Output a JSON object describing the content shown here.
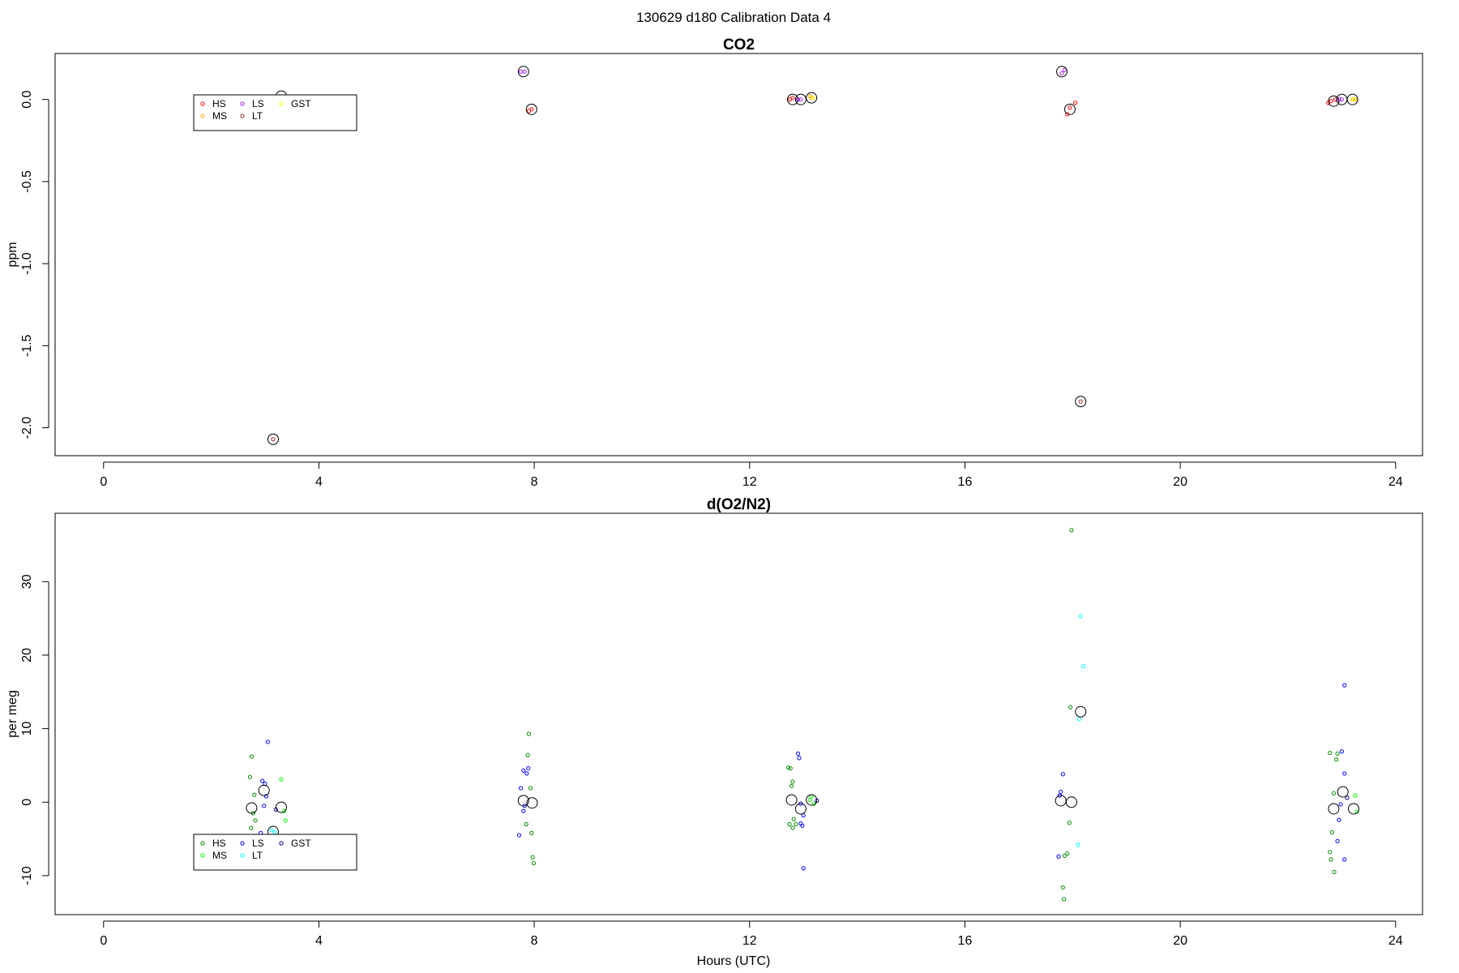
{
  "figure": {
    "suptitle": "130629   d180   Calibration Data 4",
    "xlabel": "Hours (UTC)"
  },
  "chart_data": [
    {
      "type": "scatter",
      "title": "CO2",
      "ylabel": "ppm",
      "xlabel": "",
      "xlim": [
        -0.9,
        24.5
      ],
      "ylim": [
        -2.17,
        0.28
      ],
      "xticks": [
        0,
        4,
        8,
        12,
        16,
        20,
        24
      ],
      "yticks": [
        0.0,
        -0.5,
        -1.0,
        -1.5,
        -2.0
      ],
      "ytick_labels": [
        "0.0",
        "-0.5",
        "-1.0",
        "-1.5",
        "-2.0"
      ],
      "grid": false,
      "legend_position": "upper-left",
      "series": [
        {
          "name": "HS",
          "color": "#ff0000",
          "points": [
            [
              7.95,
              -0.06
            ],
            [
              7.9,
              -0.07
            ],
            [
              12.75,
              0.0
            ],
            [
              12.8,
              0.01
            ],
            [
              17.95,
              -0.05
            ],
            [
              17.9,
              -0.09
            ],
            [
              18.05,
              -0.02
            ],
            [
              22.8,
              -0.01
            ],
            [
              22.88,
              0.0
            ],
            [
              22.75,
              -0.02
            ]
          ]
        },
        {
          "name": "MS",
          "color": "#ffa500",
          "points": [
            [
              13.15,
              0.01
            ],
            [
              13.12,
              0.02
            ],
            [
              23.2,
              0.0
            ],
            [
              23.25,
              0.0
            ]
          ]
        },
        {
          "name": "LS",
          "color": "#a020f0",
          "points": [
            [
              7.75,
              0.17
            ],
            [
              7.82,
              0.17
            ],
            [
              12.95,
              0.0
            ],
            [
              12.9,
              0.0
            ],
            [
              17.8,
              0.16
            ],
            [
              17.85,
              0.18
            ],
            [
              23.0,
              0.0
            ],
            [
              22.95,
              0.0
            ]
          ]
        },
        {
          "name": "LT",
          "color": "#a52a2a",
          "points": [
            [
              3.15,
              -2.07
            ],
            [
              18.15,
              -1.84
            ]
          ]
        },
        {
          "name": "GST",
          "color": "#ffff00",
          "points": [
            [
              13.18,
              0.01
            ],
            [
              23.22,
              0.0
            ]
          ]
        }
      ],
      "means": [
        [
          3.3,
          0.02
        ],
        [
          7.8,
          0.17
        ],
        [
          7.95,
          -0.06
        ],
        [
          12.8,
          0.0
        ],
        [
          12.95,
          0.0
        ],
        [
          13.15,
          0.01
        ],
        [
          17.8,
          0.17
        ],
        [
          17.95,
          -0.06
        ],
        [
          18.15,
          -1.84
        ],
        [
          3.15,
          -2.07
        ],
        [
          22.85,
          -0.01
        ],
        [
          23.0,
          0.0
        ],
        [
          23.2,
          0.0
        ]
      ]
    },
    {
      "type": "scatter",
      "title": "d(O2/N2)",
      "ylabel": "per meg",
      "xlabel": "Hours (UTC)",
      "xlim": [
        -0.9,
        24.5
      ],
      "ylim": [
        -15.3,
        39.3
      ],
      "xticks": [
        0,
        4,
        8,
        12,
        16,
        20,
        24
      ],
      "yticks": [
        30,
        20,
        10,
        0,
        -10
      ],
      "ytick_labels": [
        "30",
        "20",
        "10",
        "0",
        "-10"
      ],
      "grid": false,
      "legend_position": "lower-left",
      "series": [
        {
          "name": "HS",
          "color": "#008b00",
          "points": [
            [
              2.75,
              6.2
            ],
            [
              2.72,
              3.4
            ],
            [
              2.8,
              1.0
            ],
            [
              2.78,
              -1.5
            ],
            [
              2.82,
              -2.5
            ],
            [
              2.74,
              -3.5
            ],
            [
              7.9,
              9.3
            ],
            [
              7.88,
              6.4
            ],
            [
              7.93,
              1.9
            ],
            [
              7.85,
              -3.0
            ],
            [
              7.95,
              -4.2
            ],
            [
              7.97,
              -7.5
            ],
            [
              7.99,
              -8.3
            ],
            [
              12.72,
              4.7
            ],
            [
              12.76,
              4.6
            ],
            [
              12.8,
              2.8
            ],
            [
              12.78,
              2.2
            ],
            [
              12.82,
              -2.3
            ],
            [
              12.74,
              -3.0
            ],
            [
              12.86,
              -3.0
            ],
            [
              12.8,
              -3.5
            ],
            [
              17.98,
              37.0
            ],
            [
              17.96,
              12.9
            ],
            [
              17.94,
              -2.8
            ],
            [
              17.9,
              -7.0
            ],
            [
              17.85,
              -7.3
            ],
            [
              17.82,
              -11.6
            ],
            [
              17.84,
              -13.2
            ],
            [
              22.78,
              6.7
            ],
            [
              22.92,
              6.6
            ],
            [
              22.9,
              5.8
            ],
            [
              22.85,
              1.2
            ],
            [
              22.82,
              -4.1
            ],
            [
              22.78,
              -6.8
            ],
            [
              22.8,
              -7.8
            ],
            [
              22.86,
              -9.5
            ]
          ]
        },
        {
          "name": "MS",
          "color": "#00ff00",
          "points": [
            [
              3.3,
              3.1
            ],
            [
              3.35,
              -1.2
            ],
            [
              3.38,
              -2.5
            ],
            [
              13.15,
              0.8
            ],
            [
              13.12,
              0.3
            ],
            [
              13.2,
              -0.2
            ],
            [
              23.25,
              0.9
            ],
            [
              23.28,
              -1.3
            ]
          ]
        },
        {
          "name": "LS",
          "color": "#0000ff",
          "points": [
            [
              3.05,
              8.2
            ],
            [
              2.95,
              2.9
            ],
            [
              3.0,
              2.5
            ],
            [
              3.02,
              0.8
            ],
            [
              2.98,
              -0.5
            ],
            [
              2.92,
              -4.2
            ],
            [
              7.8,
              4.3
            ],
            [
              7.86,
              3.9
            ],
            [
              7.89,
              4.6
            ],
            [
              7.75,
              1.9
            ],
            [
              7.82,
              -0.5
            ],
            [
              7.8,
              -1.2
            ],
            [
              7.72,
              -4.5
            ],
            [
              12.9,
              6.6
            ],
            [
              12.92,
              6.0
            ],
            [
              12.95,
              -0.2
            ],
            [
              13.0,
              -1.8
            ],
            [
              12.95,
              -2.9
            ],
            [
              12.98,
              -3.2
            ],
            [
              13.0,
              -9.0
            ],
            [
              17.82,
              3.8
            ],
            [
              17.78,
              1.4
            ],
            [
              17.76,
              0.9
            ],
            [
              17.74,
              -7.4
            ],
            [
              23.05,
              15.9
            ],
            [
              23.0,
              6.9
            ],
            [
              23.05,
              3.9
            ],
            [
              22.98,
              -0.3
            ],
            [
              22.95,
              -2.4
            ],
            [
              22.92,
              -5.3
            ],
            [
              23.05,
              -7.8
            ]
          ]
        },
        {
          "name": "LT",
          "color": "#00ffff",
          "points": [
            [
              3.12,
              -3.8
            ],
            [
              3.18,
              -4.1
            ],
            [
              18.15,
              25.3
            ],
            [
              18.2,
              18.5
            ],
            [
              18.12,
              11.3
            ],
            [
              18.1,
              -5.8
            ]
          ]
        },
        {
          "name": "GST",
          "color": "#00008b",
          "points": [
            [
              3.2,
              -1.0
            ],
            [
              13.25,
              0.2
            ],
            [
              23.1,
              0.6
            ]
          ]
        }
      ],
      "means": [
        [
          2.75,
          -0.8
        ],
        [
          2.98,
          1.6
        ],
        [
          3.3,
          -0.7
        ],
        [
          3.15,
          -4.0
        ],
        [
          7.8,
          0.2
        ],
        [
          7.96,
          -0.1
        ],
        [
          12.78,
          0.3
        ],
        [
          12.95,
          -0.9
        ],
        [
          13.15,
          0.3
        ],
        [
          17.78,
          0.2
        ],
        [
          17.98,
          0.0
        ],
        [
          18.15,
          12.3
        ],
        [
          22.85,
          -0.9
        ],
        [
          23.02,
          1.4
        ],
        [
          23.22,
          -0.9
        ]
      ]
    }
  ]
}
